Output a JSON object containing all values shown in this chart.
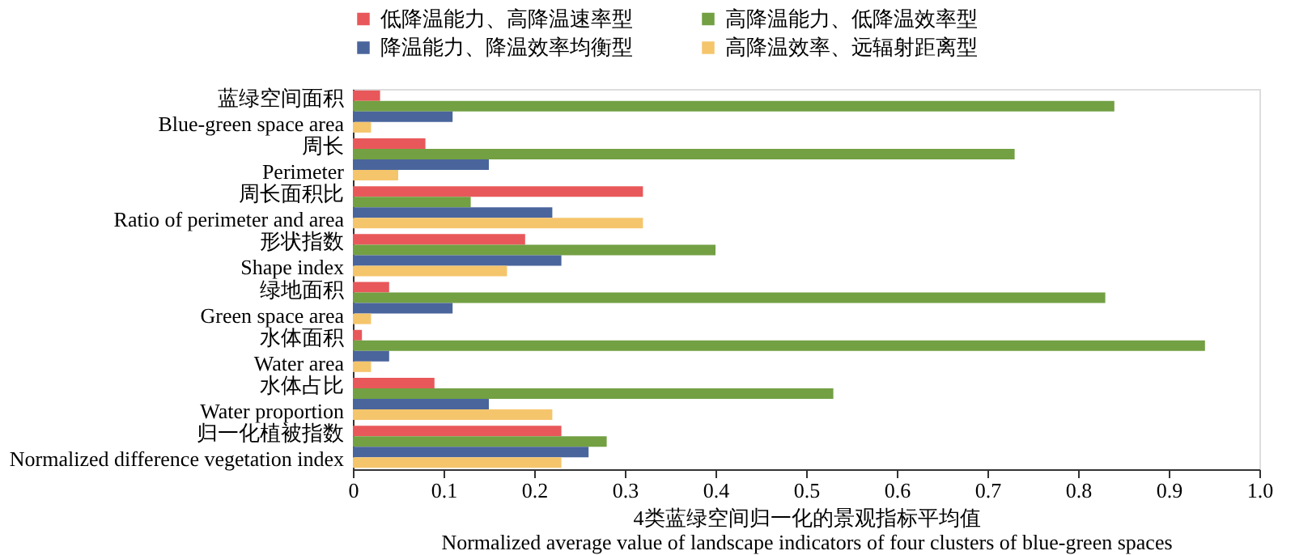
{
  "chart_data": {
    "type": "bar",
    "orientation": "horizontal",
    "xlabel": "4类蓝绿空间归一化的景观指标平均值\nNormalized average value of landscape indicators of four clusters of blue-green spaces",
    "categories": [
      "蓝绿空间面积\nBlue-green space area",
      "周长\nPerimeter",
      "周长面积比\nRatio of perimeter and area",
      "形状指数\nShape index",
      "绿地面积\nGreen space area",
      "水体面积\nWater area",
      "水体占比\nWater proportion",
      "归一化植被指数\nNormalized difference vegetation index"
    ],
    "series": [
      {
        "name": "低降温能力、高降温速率型",
        "color": "#e8585a",
        "values": [
          0.03,
          0.08,
          0.32,
          0.19,
          0.04,
          0.01,
          0.09,
          0.23
        ]
      },
      {
        "name": "高降温能力、低降温效率型",
        "color": "#72a043",
        "values": [
          0.84,
          0.73,
          0.13,
          0.4,
          0.83,
          0.94,
          0.53,
          0.28
        ]
      },
      {
        "name": "降温能力、降温效率均衡型",
        "color": "#4a659c",
        "values": [
          0.11,
          0.15,
          0.22,
          0.23,
          0.11,
          0.04,
          0.15,
          0.26
        ]
      },
      {
        "name": "高降温效率、远辐射距离型",
        "color": "#f5c56c",
        "values": [
          0.02,
          0.05,
          0.32,
          0.17,
          0.02,
          0.02,
          0.22,
          0.23
        ]
      }
    ],
    "xlim": [
      0,
      1.0
    ],
    "xticks": [
      0,
      0.1,
      0.2,
      0.3,
      0.4,
      0.5,
      0.6,
      0.7,
      0.8,
      0.9,
      {
        "value": 1.0,
        "label": "1.0"
      }
    ],
    "grid": false,
    "legend": "top"
  }
}
